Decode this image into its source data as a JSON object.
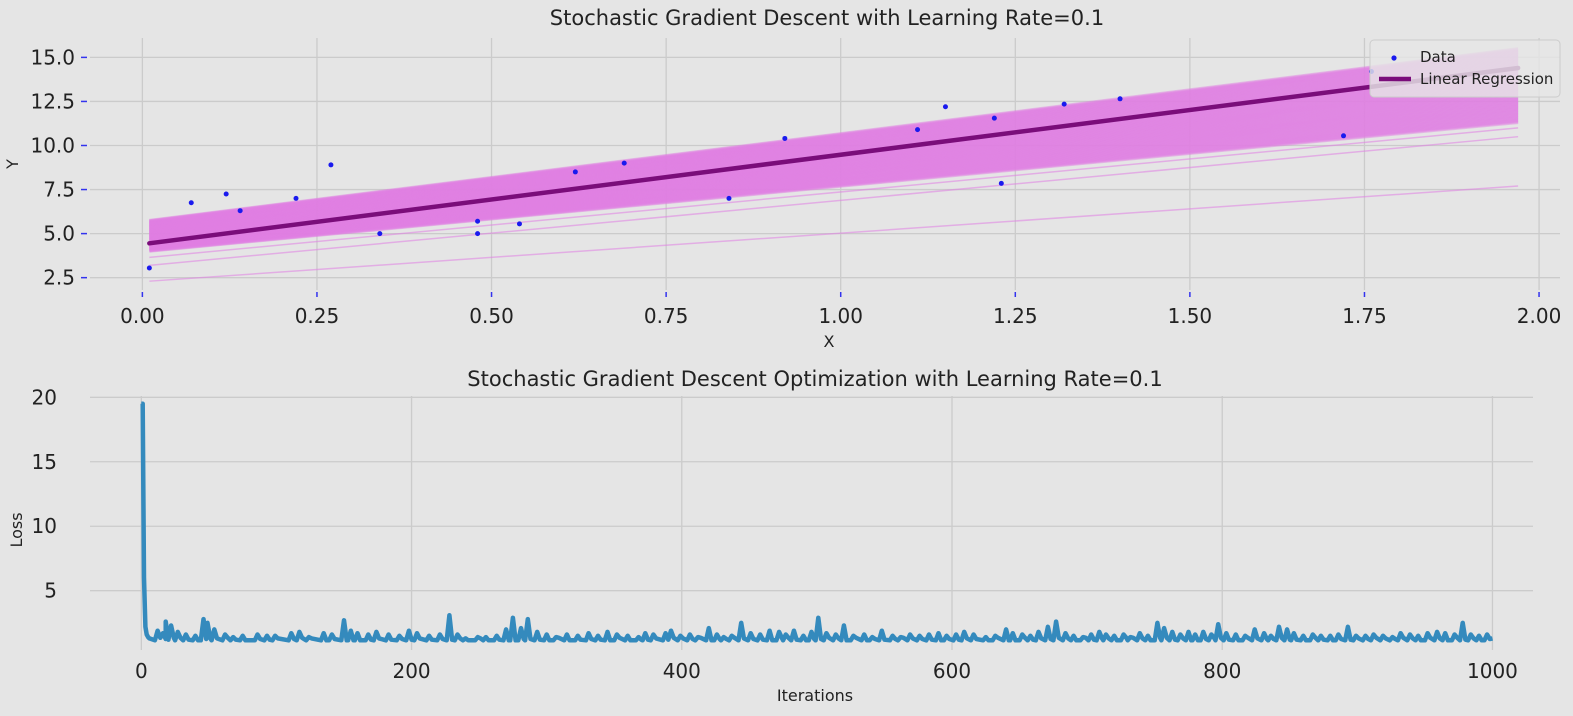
{
  "chart_data": [
    {
      "type": "scatter",
      "title": "Stochastic Gradient Descent with Learning Rate=0.1",
      "xlabel": "X",
      "ylabel": "Y",
      "xlim": [
        -0.075,
        2.03
      ],
      "ylim": [
        1.8,
        16.1
      ],
      "xticks": [
        0.0,
        0.25,
        0.5,
        0.75,
        1.0,
        1.25,
        1.5,
        1.75,
        2.0
      ],
      "xtick_labels": [
        "0.00",
        "0.25",
        "0.50",
        "0.75",
        "1.00",
        "1.25",
        "1.50",
        "1.75",
        "2.00"
      ],
      "yticks": [
        2.5,
        5.0,
        7.5,
        10.0,
        12.5,
        15.0
      ],
      "ytick_labels": [
        "2.5",
        "5.0",
        "7.5",
        "10.0",
        "12.5",
        "15.0"
      ],
      "grid": true,
      "legend_position": "top-right",
      "legend": [
        "Data",
        "Linear Regression"
      ],
      "colors": {
        "data": "#1a1aee",
        "regression": "#7a0d7a",
        "iterations": "#e07fe3",
        "background": "#e5e5e5"
      },
      "points": [
        [
          0.01,
          3.05
        ],
        [
          0.07,
          6.75
        ],
        [
          0.12,
          7.25
        ],
        [
          0.14,
          6.3
        ],
        [
          0.22,
          7.0
        ],
        [
          0.27,
          8.9
        ],
        [
          0.34,
          5.0
        ],
        [
          0.48,
          5.0
        ],
        [
          0.48,
          5.7
        ],
        [
          0.54,
          5.55
        ],
        [
          0.62,
          8.5
        ],
        [
          0.69,
          9.0
        ],
        [
          0.84,
          7.0
        ],
        [
          0.92,
          10.4
        ],
        [
          1.11,
          10.9
        ],
        [
          1.15,
          12.2
        ],
        [
          1.22,
          11.55
        ],
        [
          1.23,
          7.85
        ],
        [
          1.32,
          12.35
        ],
        [
          1.4,
          12.65
        ],
        [
          1.72,
          10.55
        ],
        [
          1.76,
          14.2
        ]
      ],
      "regression_line": {
        "x": [
          0.01,
          1.97
        ],
        "y": [
          4.45,
          14.4
        ]
      },
      "iteration_line_range": {
        "x": [
          0.01,
          1.97
        ],
        "start": [
          5.75,
          4.0
        ],
        "end": [
          15.5,
          11.3
        ]
      },
      "iteration_outliers": [
        {
          "x": [
            0.01,
            1.97
          ],
          "y": [
            2.3,
            7.7
          ]
        },
        {
          "x": [
            0.01,
            1.97
          ],
          "y": [
            3.2,
            10.5
          ]
        },
        {
          "x": [
            0.01,
            1.97
          ],
          "y": [
            3.65,
            11.0
          ]
        }
      ]
    },
    {
      "type": "line",
      "title": "Stochastic Gradient Descent Optimization with Learning Rate=0.1",
      "xlabel": "Iterations",
      "ylabel": "Loss",
      "xlim": [
        -38,
        1030
      ],
      "ylim": [
        0.4,
        20.1
      ],
      "xticks": [
        0,
        200,
        400,
        600,
        800,
        1000
      ],
      "yticks": [
        5,
        10,
        15,
        20
      ],
      "grid": true,
      "colors": {
        "loss": "#348abd"
      },
      "series": [
        {
          "start_values": [
            [
              0,
              19.5
            ],
            [
              1,
              19.5
            ],
            [
              2,
              6.0
            ],
            [
              3,
              2.2
            ],
            [
              4,
              1.6
            ],
            [
              5,
              1.4
            ],
            [
              6,
              1.3
            ]
          ],
          "baseline": 1.15,
          "spikes": [
            [
              12,
              1.9
            ],
            [
              16,
              1.7
            ],
            [
              18,
              2.6
            ],
            [
              22,
              2.3
            ],
            [
              27,
              1.8
            ],
            [
              33,
              1.6
            ],
            [
              40,
              1.5
            ],
            [
              46,
              2.8
            ],
            [
              49,
              2.5
            ],
            [
              54,
              2.0
            ],
            [
              62,
              1.6
            ],
            [
              68,
              1.4
            ],
            [
              75,
              1.5
            ],
            [
              86,
              1.6
            ],
            [
              93,
              1.5
            ],
            [
              99,
              1.5
            ],
            [
              111,
              1.7
            ],
            [
              117,
              1.8
            ],
            [
              124,
              1.4
            ],
            [
              135,
              1.7
            ],
            [
              141,
              1.6
            ],
            [
              150,
              2.7
            ],
            [
              155,
              1.9
            ],
            [
              160,
              1.7
            ],
            [
              168,
              1.6
            ],
            [
              174,
              1.8
            ],
            [
              183,
              1.6
            ],
            [
              191,
              1.5
            ],
            [
              198,
              1.9
            ],
            [
              204,
              1.7
            ],
            [
              213,
              1.5
            ],
            [
              221,
              1.6
            ],
            [
              228,
              3.1
            ],
            [
              234,
              1.6
            ],
            [
              240,
              1.3
            ],
            [
              249,
              1.4
            ],
            [
              255,
              1.4
            ],
            [
              263,
              1.5
            ],
            [
              270,
              2.0
            ],
            [
              275,
              2.9
            ],
            [
              281,
              2.1
            ],
            [
              286,
              2.8
            ],
            [
              293,
              1.8
            ],
            [
              300,
              1.6
            ],
            [
              307,
              1.4
            ],
            [
              315,
              1.6
            ],
            [
              323,
              1.5
            ],
            [
              331,
              1.7
            ],
            [
              338,
              1.5
            ],
            [
              345,
              1.8
            ],
            [
              352,
              1.6
            ],
            [
              360,
              1.5
            ],
            [
              368,
              1.4
            ],
            [
              373,
              1.7
            ],
            [
              379,
              1.6
            ],
            [
              388,
              1.7
            ],
            [
              392,
              1.9
            ],
            [
              399,
              1.5
            ],
            [
              406,
              1.6
            ],
            [
              412,
              1.4
            ],
            [
              420,
              2.1
            ],
            [
              426,
              1.6
            ],
            [
              431,
              1.4
            ],
            [
              437,
              1.5
            ],
            [
              444,
              2.5
            ],
            [
              451,
              1.7
            ],
            [
              458,
              1.6
            ],
            [
              465,
              1.9
            ],
            [
              472,
              1.8
            ],
            [
              477,
              1.6
            ],
            [
              483,
              1.9
            ],
            [
              490,
              1.5
            ],
            [
              496,
              1.8
            ],
            [
              501,
              2.9
            ],
            [
              507,
              1.7
            ],
            [
              514,
              1.6
            ],
            [
              520,
              2.3
            ],
            [
              527,
              1.5
            ],
            [
              535,
              1.6
            ],
            [
              541,
              1.4
            ],
            [
              548,
              1.9
            ],
            [
              556,
              1.5
            ],
            [
              562,
              1.4
            ],
            [
              569,
              1.6
            ],
            [
              576,
              1.5
            ],
            [
              583,
              1.6
            ],
            [
              590,
              1.7
            ],
            [
              596,
              1.5
            ],
            [
              603,
              1.6
            ],
            [
              609,
              1.8
            ],
            [
              616,
              1.6
            ],
            [
              625,
              1.4
            ],
            [
              632,
              1.5
            ],
            [
              640,
              2.0
            ],
            [
              645,
              1.7
            ],
            [
              652,
              1.6
            ],
            [
              658,
              1.5
            ],
            [
              664,
              1.8
            ],
            [
              671,
              2.2
            ],
            [
              677,
              2.6
            ],
            [
              684,
              1.7
            ],
            [
              690,
              1.5
            ],
            [
              697,
              1.4
            ],
            [
              703,
              1.6
            ],
            [
              709,
              1.8
            ],
            [
              714,
              1.6
            ],
            [
              720,
              1.5
            ],
            [
              727,
              1.6
            ],
            [
              732,
              1.4
            ],
            [
              739,
              1.7
            ],
            [
              745,
              1.5
            ],
            [
              752,
              2.5
            ],
            [
              757,
              2.1
            ],
            [
              763,
              1.8
            ],
            [
              769,
              1.6
            ],
            [
              775,
              1.8
            ],
            [
              780,
              1.6
            ],
            [
              786,
              1.8
            ],
            [
              792,
              1.6
            ],
            [
              797,
              2.4
            ],
            [
              803,
              1.7
            ],
            [
              810,
              1.6
            ],
            [
              817,
              1.5
            ],
            [
              824,
              2.0
            ],
            [
              831,
              1.7
            ],
            [
              836,
              1.5
            ],
            [
              842,
              2.2
            ],
            [
              848,
              2.0
            ],
            [
              853,
              1.7
            ],
            [
              860,
              1.5
            ],
            [
              867,
              1.6
            ],
            [
              873,
              1.5
            ],
            [
              880,
              1.5
            ],
            [
              886,
              1.6
            ],
            [
              893,
              2.2
            ],
            [
              899,
              1.5
            ],
            [
              906,
              1.5
            ],
            [
              912,
              1.6
            ],
            [
              919,
              1.5
            ],
            [
              926,
              1.4
            ],
            [
              932,
              1.7
            ],
            [
              939,
              1.6
            ],
            [
              945,
              1.5
            ],
            [
              952,
              1.7
            ],
            [
              959,
              1.8
            ],
            [
              965,
              1.7
            ],
            [
              972,
              1.6
            ],
            [
              978,
              2.5
            ],
            [
              984,
              1.6
            ],
            [
              990,
              1.5
            ],
            [
              996,
              1.6
            ]
          ],
          "end": [
            1000,
            1.3
          ]
        }
      ]
    }
  ]
}
